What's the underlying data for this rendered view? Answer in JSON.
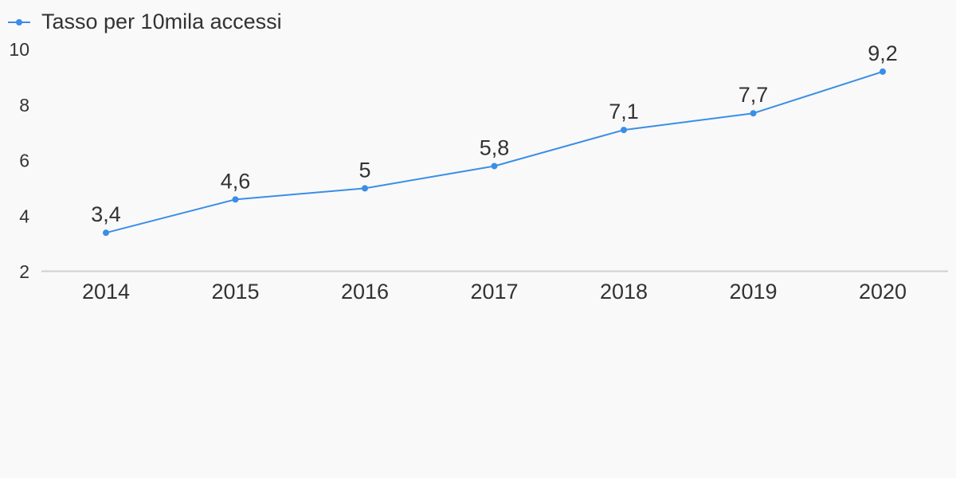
{
  "chart_data": {
    "type": "line",
    "x": [
      "2014",
      "2015",
      "2016",
      "2017",
      "2018",
      "2019",
      "2020"
    ],
    "series": [
      {
        "name": "Tasso per 10mila accessi",
        "values": [
          3.4,
          4.6,
          5,
          5.8,
          7.1,
          7.7,
          9.2
        ],
        "labels": [
          "3,4",
          "4,6",
          "5",
          "5,8",
          "7,1",
          "7,7",
          "9,2"
        ],
        "color": "#3a8ee6"
      }
    ],
    "yticks": [
      "2",
      "4",
      "6",
      "8",
      "10"
    ],
    "ylim": [
      2,
      10
    ],
    "title": "",
    "xlabel": "",
    "ylabel": "",
    "grid": false,
    "legend_position": "top-left",
    "axis_color": "#d0d0d0",
    "background": "#f9f9f9"
  }
}
